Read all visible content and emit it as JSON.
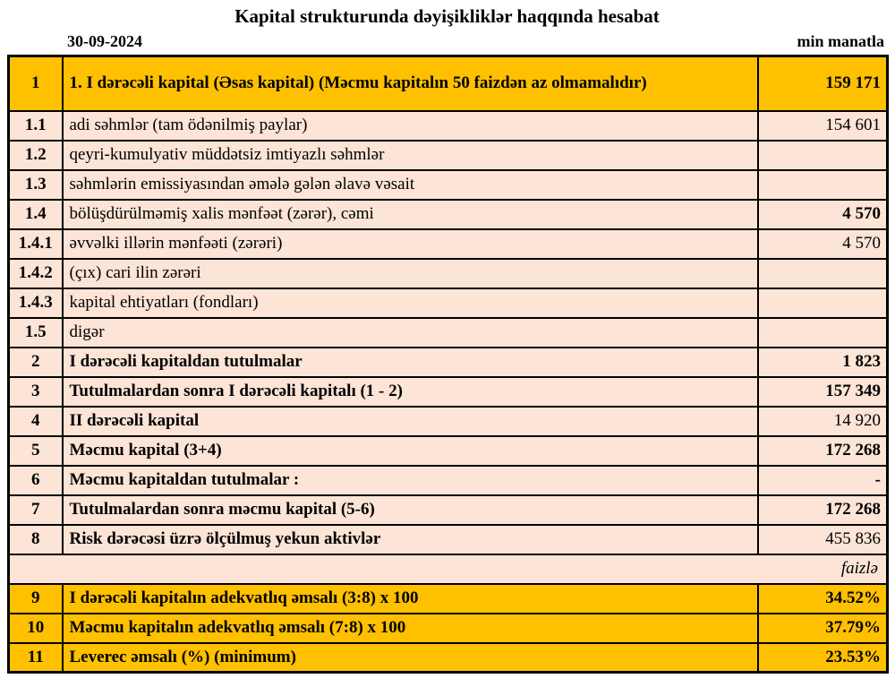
{
  "header": {
    "title": "Kapital strukturunda dəyişikliklər haqqında hesabat",
    "date": "30-09-2024",
    "unit": "min manatla"
  },
  "colors": {
    "gold": "#FFC000",
    "peach": "#FCE4D6",
    "border": "#000000",
    "background": "#FFFFFF"
  },
  "table": {
    "rows": [
      {
        "no": "1",
        "label": "1. I dərəcəli kapital (Əsas kapital) (Məcmu kapitalın 50 faizdən az olmamalıdır)",
        "value": "159 171",
        "variant": "gold",
        "tall": true,
        "label_bold": true,
        "value_bold": true
      },
      {
        "no": "1.1",
        "label": "adi səhmlər (tam ödənilmiş paylar)",
        "value": "154 601",
        "variant": "peach",
        "label_bold": false,
        "value_bold": false
      },
      {
        "no": "1.2",
        "label": "qeyri-kumulyativ müddətsiz imtiyazlı səhmlər",
        "value": "",
        "variant": "peach",
        "label_bold": false,
        "value_bold": false
      },
      {
        "no": "1.3",
        "label": "səhmlərin emissiyasından əmələ gələn əlavə vəsait",
        "value": "",
        "variant": "peach",
        "label_bold": false,
        "value_bold": false
      },
      {
        "no": "1.4",
        "label": "bölüşdürülməmiş xalis mənfəət (zərər), cəmi",
        "value": "4 570",
        "variant": "peach",
        "label_bold": false,
        "value_bold": true
      },
      {
        "no": "1.4.1",
        "label": "əvvəlki illərin mənfəəti (zərəri)",
        "value": "4 570",
        "variant": "peach",
        "label_bold": false,
        "value_bold": false
      },
      {
        "no": "1.4.2",
        "label": "(çıx) cari ilin zərəri",
        "value": "",
        "variant": "peach",
        "label_bold": false,
        "value_bold": false
      },
      {
        "no": "1.4.3",
        "label": "kapital ehtiyatları (fondları)",
        "value": "",
        "variant": "peach",
        "label_bold": false,
        "value_bold": false
      },
      {
        "no": "1.5",
        "label": "digər",
        "value": "",
        "variant": "peach",
        "label_bold": false,
        "value_bold": false
      },
      {
        "no": "2",
        "label": "I dərəcəli kapitaldan  tutulmalar",
        "value": "1 823",
        "variant": "peach",
        "label_bold": true,
        "value_bold": true
      },
      {
        "no": "3",
        "label": "Tutulmalardan  sonra I dərəcəli kapitalı (1 - 2)",
        "value": "157 349",
        "variant": "peach",
        "label_bold": true,
        "value_bold": true
      },
      {
        "no": "4",
        "label": "II dərəcəli  kapital",
        "value": "14 920",
        "variant": "peach",
        "label_bold": true,
        "value_bold": false
      },
      {
        "no": "5",
        "label": "Məcmu kapital (3+4)",
        "value": "172 268",
        "variant": "peach",
        "label_bold": true,
        "value_bold": true
      },
      {
        "no": "6",
        "label": "Məcmu kapitaldan tutulmalar :",
        "value": "-",
        "variant": "peach",
        "label_bold": true,
        "value_bold": true
      },
      {
        "no": "7",
        "label": "Tutulmalardan sonra məcmu kapital (5-6)",
        "value": "172 268",
        "variant": "peach",
        "label_bold": true,
        "value_bold": true
      },
      {
        "no": "8",
        "label": "Risk dərəcəsi üzrə ölçülmuş  yekun aktivlər",
        "value": "455 836",
        "variant": "peach",
        "label_bold": true,
        "value_bold": false
      },
      {
        "type": "note",
        "label": "faizlə",
        "variant": "peach"
      },
      {
        "no": "9",
        "label": "I dərəcəli  kapitalın  adekvatlıq əmsalı (3:8) x 100",
        "value": "34.52%",
        "variant": "gold",
        "label_bold": true,
        "value_bold": true
      },
      {
        "no": "10",
        "label": "Məcmu kapitalın  adekvatlıq  əmsalı (7:8) x 100",
        "value": "37.79%",
        "variant": "gold",
        "label_bold": true,
        "value_bold": true
      },
      {
        "no": "11",
        "label": "Leverec əmsalı (%) (minimum)",
        "value": "23.53%",
        "variant": "gold",
        "label_bold": true,
        "value_bold": true
      }
    ]
  }
}
